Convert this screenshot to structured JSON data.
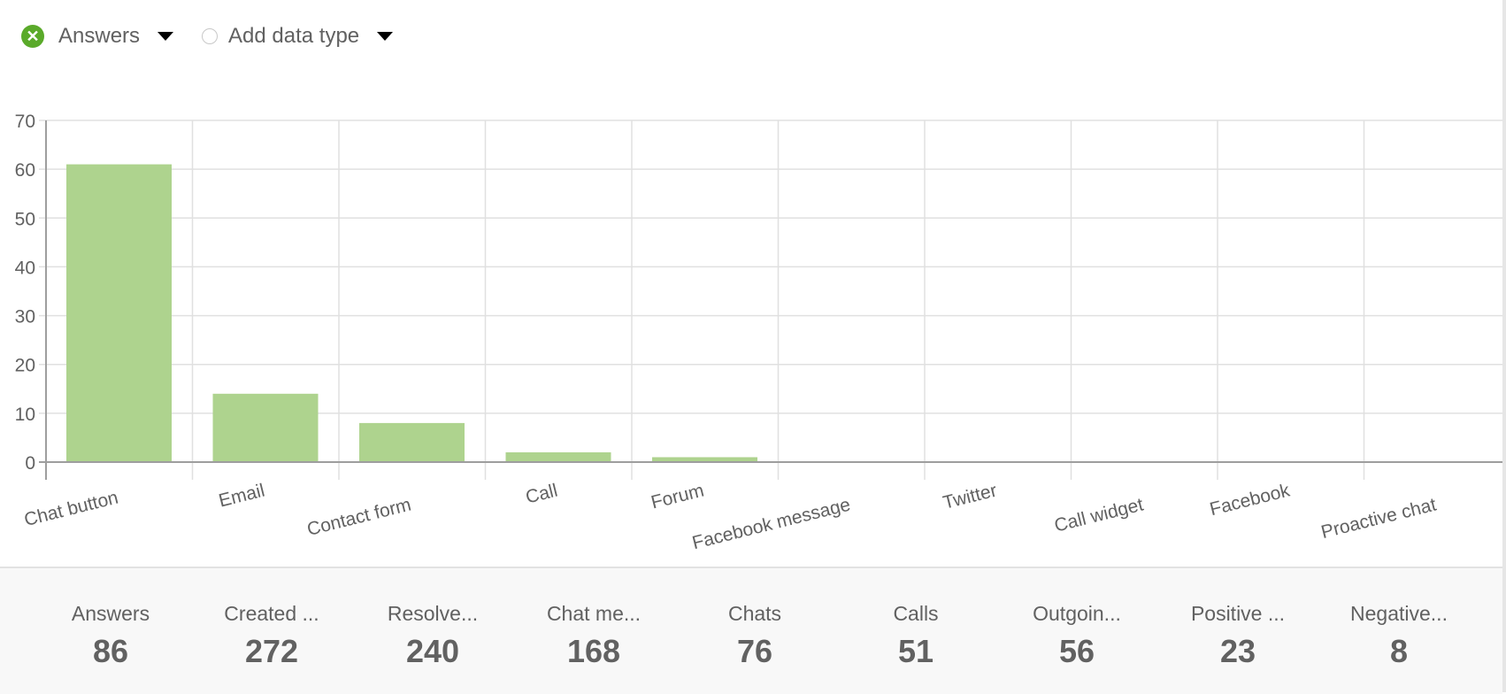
{
  "toolbar": {
    "series_label": "Answers",
    "add_label": "Add data type",
    "series_color": "#5aaa2a"
  },
  "chart_data": {
    "type": "bar",
    "categories": [
      "Chat button",
      "Email",
      "Contact form",
      "Call",
      "Forum",
      "Facebook message",
      "Twitter",
      "Call widget",
      "Facebook",
      "Proactive chat"
    ],
    "series": [
      {
        "name": "Answers",
        "values": [
          61,
          14,
          8,
          2,
          1,
          0,
          0,
          0,
          0,
          0
        ],
        "color": "#aed38e"
      }
    ],
    "yticks": [
      "0",
      "10",
      "20",
      "30",
      "40",
      "50",
      "60",
      "70"
    ],
    "ylim": [
      0,
      70
    ],
    "grid": true
  },
  "stats": [
    {
      "label": "Answers",
      "value": "86"
    },
    {
      "label": "Created ...",
      "value": "272"
    },
    {
      "label": "Resolve...",
      "value": "240"
    },
    {
      "label": "Chat me...",
      "value": "168"
    },
    {
      "label": "Chats",
      "value": "76"
    },
    {
      "label": "Calls",
      "value": "51"
    },
    {
      "label": "Outgoin...",
      "value": "56"
    },
    {
      "label": "Positive ...",
      "value": "23"
    },
    {
      "label": "Negative...",
      "value": "8"
    }
  ]
}
